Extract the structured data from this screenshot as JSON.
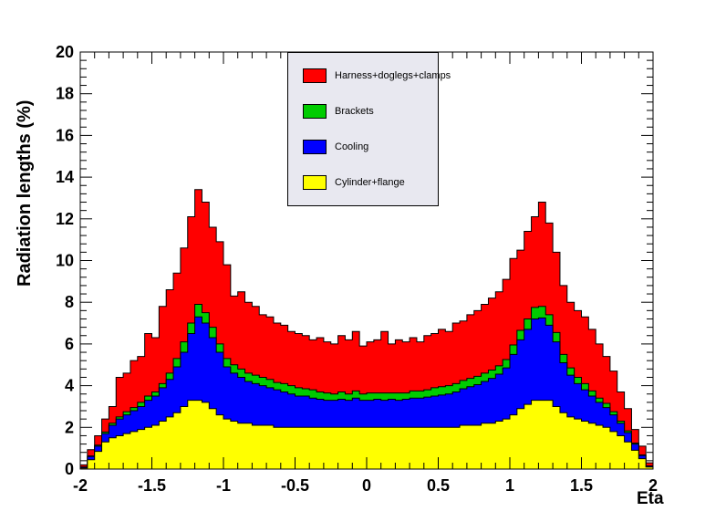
{
  "axes": {
    "ylabel": "Radiation lengths (%)",
    "xlabel": "Eta",
    "xlim": [
      -2,
      2
    ],
    "ylim": [
      0,
      20
    ],
    "y_ticks": [
      0,
      2,
      4,
      6,
      8,
      10,
      12,
      14,
      16,
      18,
      20
    ],
    "x_ticks": [
      -2,
      -1.5,
      -1,
      -0.5,
      0,
      0.5,
      1,
      1.5,
      2
    ],
    "x_tick_labels": [
      "-2",
      "-1.5",
      "-1",
      "-0.5",
      "0",
      "0.5",
      "1",
      "1.5",
      "2"
    ],
    "y_minor_step": 0.4,
    "x_minor_step": 0.1,
    "frame_color": "#000000",
    "grid": false
  },
  "legend": {
    "background": "#E8E8F0",
    "border": "#000000",
    "position": "top-center",
    "entries": [
      {
        "label": "Harness+doglegs+clamps",
        "color": "#FF0000"
      },
      {
        "label": "Brackets",
        "color": "#00CC00"
      },
      {
        "label": "Cooling",
        "color": "#0000FF"
      },
      {
        "label": "Cylinder+flange",
        "color": "#FFFF00"
      }
    ]
  },
  "chart_data": {
    "type": "bar",
    "stacked": true,
    "title": "",
    "xlabel": "Eta",
    "ylabel": "Radiation lengths (%)",
    "xlim": [
      -2,
      2
    ],
    "ylim": [
      0,
      20
    ],
    "bin_width": 0.05,
    "x_min": -2,
    "series": [
      {
        "id": "cylinder_flange",
        "name": "Cylinder+flange",
        "color": "#FFFF00",
        "values": [
          0.05,
          0.45,
          0.85,
          1.3,
          1.5,
          1.6,
          1.7,
          1.8,
          1.9,
          2.0,
          2.1,
          2.3,
          2.5,
          2.7,
          3.0,
          3.3,
          3.3,
          3.2,
          2.9,
          2.6,
          2.4,
          2.3,
          2.2,
          2.2,
          2.1,
          2.1,
          2.1,
          2.0,
          2.0,
          2.0,
          2.0,
          2.0,
          2.0,
          2.0,
          2.0,
          2.0,
          2.0,
          2.0,
          2.0,
          2.0,
          2.0,
          2.0,
          2.0,
          2.0,
          2.0,
          2.0,
          2.0,
          2.0,
          2.0,
          2.0,
          2.0,
          2.0,
          2.0,
          2.1,
          2.1,
          2.1,
          2.2,
          2.2,
          2.3,
          2.4,
          2.6,
          2.9,
          3.1,
          3.3,
          3.3,
          3.3,
          3.0,
          2.7,
          2.5,
          2.4,
          2.3,
          2.2,
          2.1,
          2.0,
          1.8,
          1.6,
          1.3,
          0.9,
          0.5,
          0.1
        ]
      },
      {
        "id": "cooling",
        "name": "Cooling",
        "color": "#0000FF",
        "values": [
          0.05,
          0.15,
          0.25,
          0.4,
          0.6,
          0.8,
          0.9,
          1.0,
          1.1,
          1.3,
          1.4,
          1.6,
          1.8,
          2.2,
          2.6,
          3.2,
          4.0,
          3.8,
          3.4,
          3.0,
          2.5,
          2.3,
          2.2,
          2.0,
          2.0,
          1.9,
          1.8,
          1.8,
          1.7,
          1.6,
          1.5,
          1.5,
          1.4,
          1.35,
          1.3,
          1.3,
          1.35,
          1.3,
          1.4,
          1.3,
          1.3,
          1.35,
          1.3,
          1.35,
          1.3,
          1.35,
          1.4,
          1.4,
          1.45,
          1.5,
          1.55,
          1.6,
          1.7,
          1.75,
          1.85,
          1.95,
          2.0,
          2.15,
          2.25,
          2.45,
          2.9,
          3.3,
          3.6,
          3.9,
          3.95,
          3.6,
          3.1,
          2.4,
          2.0,
          1.7,
          1.5,
          1.3,
          1.1,
          0.95,
          0.8,
          0.6,
          0.45,
          0.3,
          0.15,
          0.05
        ]
      },
      {
        "id": "brackets",
        "name": "Brackets",
        "color": "#00CC00",
        "values": [
          0.0,
          0.03,
          0.05,
          0.08,
          0.1,
          0.1,
          0.15,
          0.15,
          0.2,
          0.2,
          0.2,
          0.2,
          0.3,
          0.4,
          0.5,
          0.5,
          0.6,
          0.5,
          0.5,
          0.4,
          0.4,
          0.4,
          0.4,
          0.4,
          0.4,
          0.4,
          0.4,
          0.35,
          0.4,
          0.4,
          0.4,
          0.35,
          0.4,
          0.35,
          0.35,
          0.3,
          0.35,
          0.3,
          0.35,
          0.3,
          0.35,
          0.3,
          0.35,
          0.3,
          0.35,
          0.3,
          0.35,
          0.35,
          0.35,
          0.4,
          0.4,
          0.4,
          0.4,
          0.4,
          0.4,
          0.4,
          0.4,
          0.4,
          0.4,
          0.4,
          0.45,
          0.45,
          0.5,
          0.55,
          0.55,
          0.5,
          0.45,
          0.4,
          0.35,
          0.3,
          0.3,
          0.25,
          0.2,
          0.2,
          0.15,
          0.1,
          0.08,
          0.05,
          0.03,
          0.0
        ]
      },
      {
        "id": "harness",
        "name": "Harness+doglegs+clamps",
        "color": "#FF0000",
        "values": [
          0.1,
          0.3,
          0.45,
          0.62,
          0.8,
          1.9,
          1.85,
          2.25,
          2.2,
          3.0,
          2.6,
          3.7,
          4.0,
          4.1,
          4.5,
          5.1,
          5.5,
          5.3,
          4.8,
          4.9,
          4.5,
          3.3,
          3.7,
          3.4,
          3.3,
          3.0,
          3.0,
          2.85,
          2.8,
          2.6,
          2.6,
          2.55,
          2.4,
          2.6,
          2.45,
          2.4,
          2.7,
          2.6,
          2.85,
          2.3,
          2.45,
          2.55,
          2.95,
          2.35,
          2.55,
          2.45,
          2.55,
          2.35,
          2.6,
          2.6,
          2.75,
          2.6,
          2.9,
          2.85,
          3.05,
          3.15,
          3.3,
          3.45,
          3.55,
          3.85,
          4.15,
          3.85,
          4.2,
          4.35,
          5.0,
          4.4,
          3.85,
          3.3,
          3.15,
          3.2,
          3.2,
          2.95,
          2.6,
          2.25,
          1.95,
          1.4,
          1.07,
          0.65,
          0.42,
          0.15
        ]
      }
    ],
    "legend_position": "top-center"
  }
}
